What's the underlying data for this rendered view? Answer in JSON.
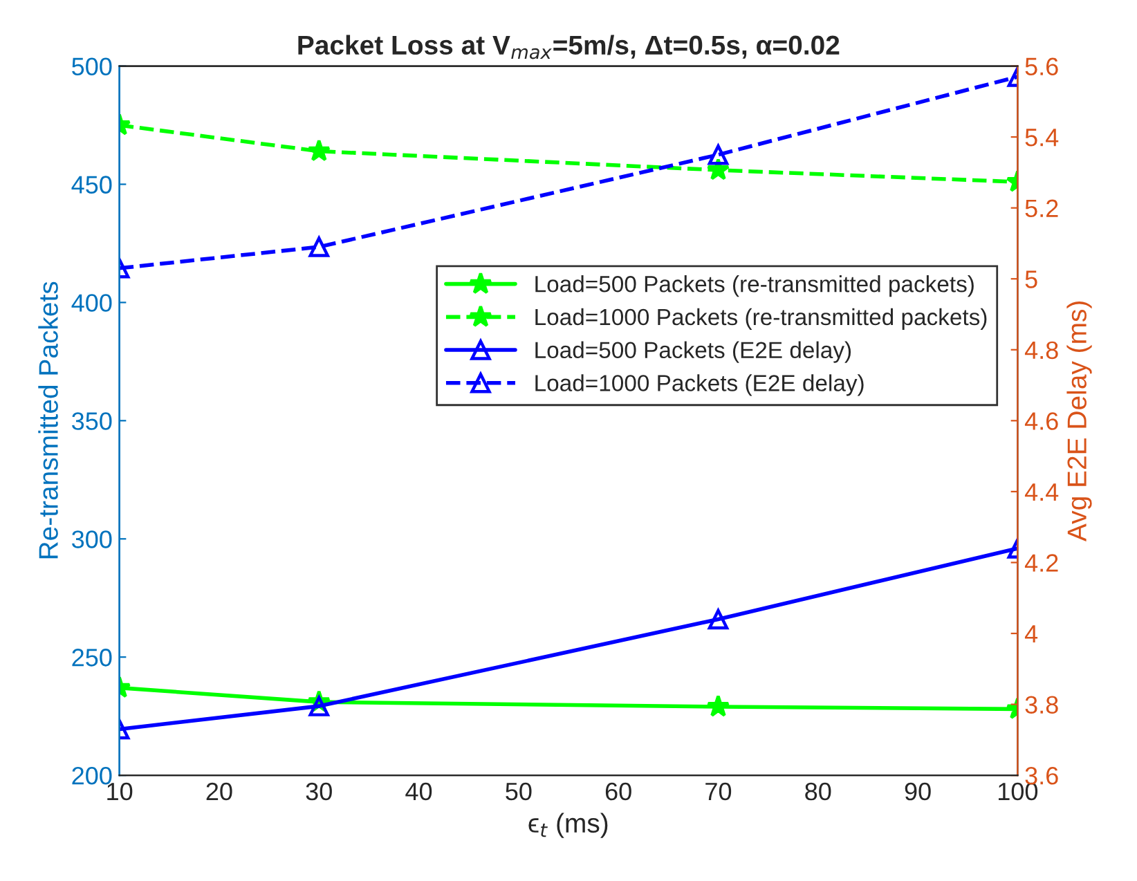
{
  "chart_data": {
    "type": "line",
    "title": "Packet Loss at V$_{max}$=5m/s, Δt=0.5s, α=0.02",
    "xlabel": "ϵ$_{t}$ (ms)",
    "ylabel": "Re-transmitted Packets",
    "y2label": "Avg E2E Delay (ms)",
    "x": [
      10,
      30,
      70,
      100
    ],
    "series": [
      {
        "name": "Load=500 Packets (re-transmitted packets)",
        "color": "#00ff00",
        "values": [
          237,
          231,
          229,
          228
        ],
        "marker": "star",
        "line_style": "solid"
      },
      {
        "name": "Load=1000 Packets (re-transmitted packets)",
        "color": "#00ff00",
        "values": [
          475,
          464,
          456,
          451
        ],
        "marker": "star",
        "line_style": "dashed"
      },
      {
        "name": "Load=500 Packets (E2E delay)",
        "color": "#0000ff",
        "values": [
          3.73,
          3.795,
          4.04,
          4.24
        ],
        "marker": "triangle",
        "line_style": "solid",
        "axis": "y2"
      },
      {
        "name": "Load=1000 Packets (E2E delay)",
        "color": "#0000ff",
        "values": [
          5.03,
          5.09,
          5.35,
          5.57
        ],
        "marker": "triangle",
        "line_style": "dashed",
        "axis": "y2"
      }
    ],
    "xlim": [
      10,
      100
    ],
    "xticks": [
      10,
      20,
      30,
      40,
      50,
      60,
      70,
      80,
      90,
      100
    ],
    "ylim": [
      200,
      500
    ],
    "yticks": [
      200,
      250,
      300,
      350,
      400,
      450,
      500
    ],
    "y2lim": [
      3.6,
      5.6
    ],
    "y2ticks": [
      3.6,
      3.8,
      4,
      4.2,
      4.4,
      4.6,
      4.8,
      5,
      5.2,
      5.4,
      5.6
    ],
    "grid": false,
    "legend": "right"
  }
}
